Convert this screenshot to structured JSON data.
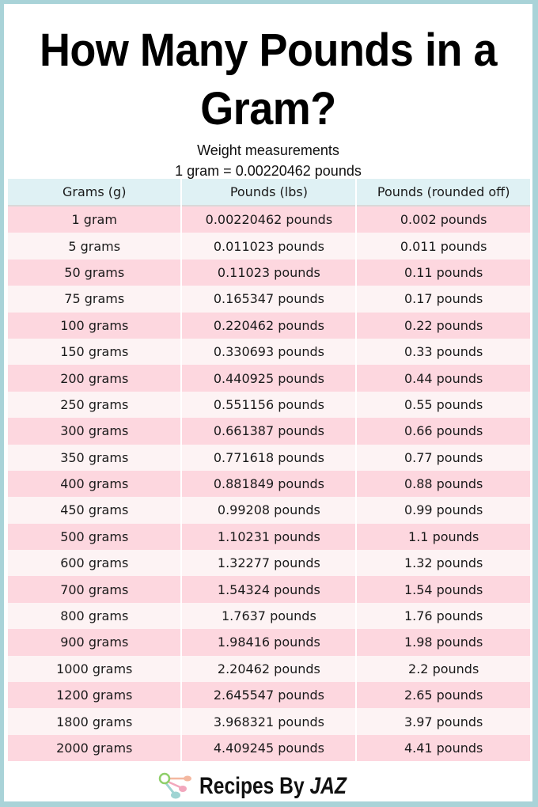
{
  "title": {
    "line1": "How Many Pounds in a",
    "line2": "Gram?"
  },
  "subtitle": {
    "line1": "Weight measurements",
    "line2": "1 gram =  0.00220462 pounds"
  },
  "table": {
    "headers": [
      "Grams (g)",
      "Pounds (lbs)",
      "Pounds (rounded off)"
    ],
    "rows": [
      [
        "1 gram",
        "0.00220462 pounds",
        "0.002 pounds"
      ],
      [
        "5 grams",
        "0.011023 pounds",
        "0.011 pounds"
      ],
      [
        "50 grams",
        "0.11023 pounds",
        "0.11 pounds"
      ],
      [
        "75 grams",
        "0.165347 pounds",
        "0.17 pounds"
      ],
      [
        "100 grams",
        "0.220462 pounds",
        "0.22 pounds"
      ],
      [
        "150 grams",
        "0.330693 pounds",
        "0.33 pounds"
      ],
      [
        "200 grams",
        "0.440925 pounds",
        "0.44 pounds"
      ],
      [
        "250 grams",
        "0.551156 pounds",
        "0.55 pounds"
      ],
      [
        "300 grams",
        "0.661387 pounds",
        "0.66 pounds"
      ],
      [
        "350 grams",
        "0.771618 pounds",
        "0.77 pounds"
      ],
      [
        "400 grams",
        "0.881849 pounds",
        "0.88 pounds"
      ],
      [
        "450 grams",
        "0.99208 pounds",
        "0.99 pounds"
      ],
      [
        "500 grams",
        "1.10231 pounds",
        "1.1 pounds"
      ],
      [
        "600 grams",
        "1.32277 pounds",
        "1.32 pounds"
      ],
      [
        "700 grams",
        "1.54324 pounds",
        "1.54 pounds"
      ],
      [
        "800 grams",
        "1.7637 pounds",
        "1.76 pounds"
      ],
      [
        "900 grams",
        "1.98416 pounds",
        "1.98 pounds"
      ],
      [
        "1000 grams",
        "2.20462 pounds",
        "2.2 pounds"
      ],
      [
        "1200 grams",
        "2.645547 pounds",
        "2.65 pounds"
      ],
      [
        "1800 grams",
        "3.968321 pounds",
        "3.97 pounds"
      ],
      [
        "2000 grams",
        "4.409245 pounds",
        "4.41 pounds"
      ]
    ]
  },
  "footer": {
    "logo_icon": "measuring-spoons-icon",
    "brand_main": "Recipes By ",
    "brand_italic": "JAZ"
  },
  "colors": {
    "frame": "#a9d3d8",
    "header_bg": "#dff1f4",
    "row_pink": "#fdd7df",
    "row_light": "#fdf3f4",
    "spoon_green": "#8fcf6a",
    "spoon_orange": "#f4b8a0",
    "spoon_pink": "#f2a7bd",
    "spoon_teal": "#9fd4d3"
  }
}
